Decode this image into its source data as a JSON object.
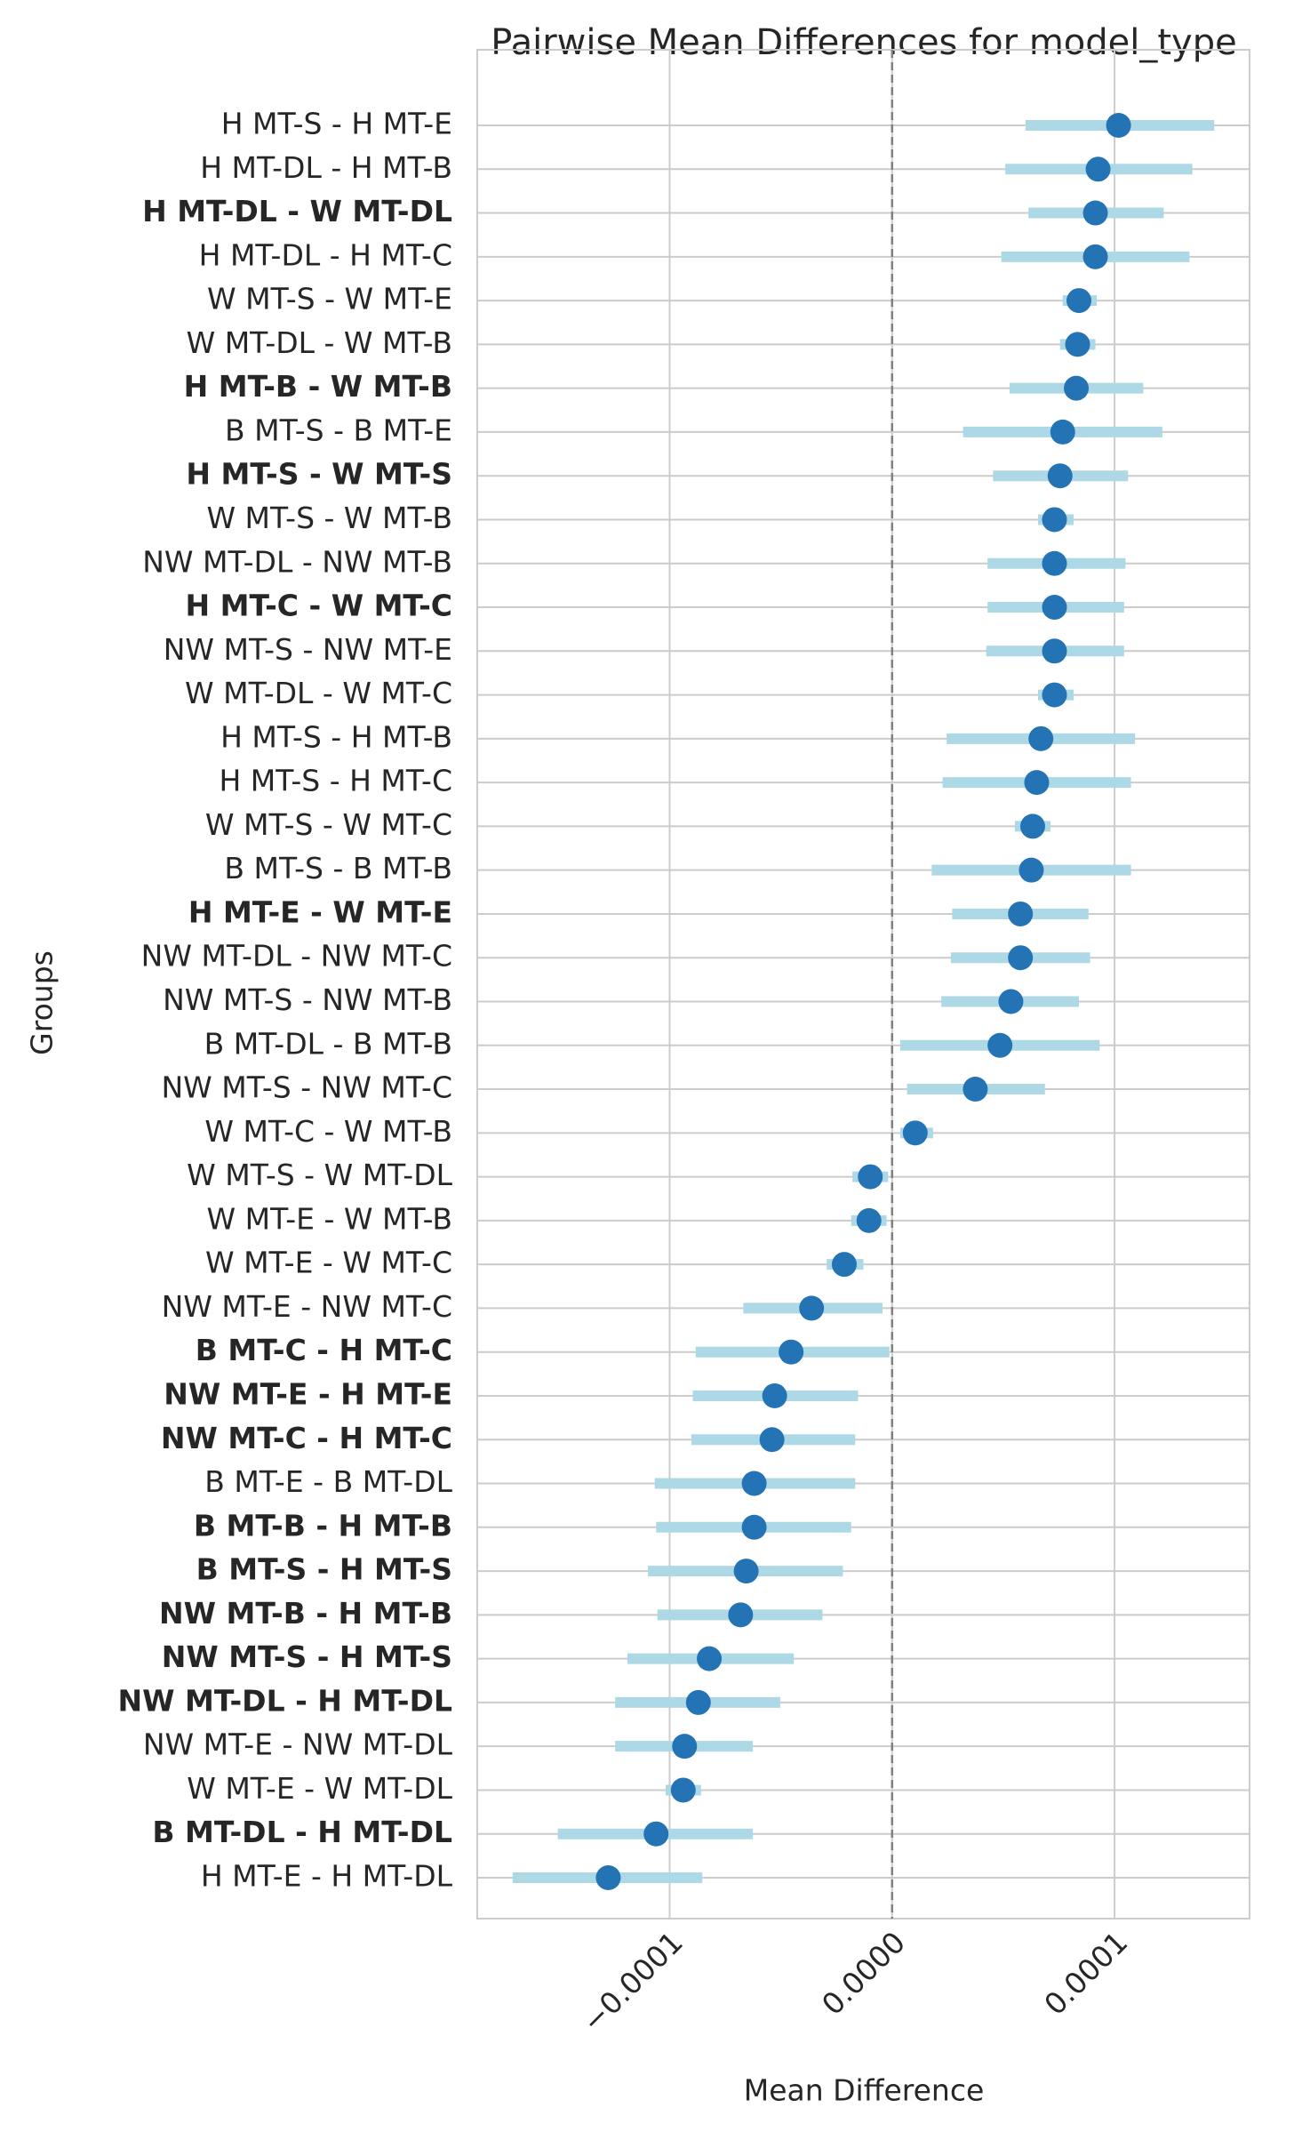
{
  "chart_data": {
    "type": "interval",
    "title": "Pairwise Mean Differences for model_type",
    "x_label": "Mean Difference",
    "y_label": "Groups",
    "categories": [
      "H MT-S - H MT-E",
      "H MT-DL - H MT-B",
      "H MT-DL - W MT-DL",
      "H MT-DL - H MT-C",
      "W MT-S - W MT-E",
      "W MT-DL - W MT-B",
      "H MT-B - W MT-B",
      "B MT-S - B MT-E",
      "H MT-S - W MT-S",
      "W MT-S - W MT-B",
      "NW MT-DL - NW MT-B",
      "H MT-C - W MT-C",
      "NW MT-S - NW MT-E",
      "W MT-DL - W MT-C",
      "H MT-S - H MT-B",
      "H MT-S - H MT-C",
      "W MT-S - W MT-C",
      "B MT-S - B MT-B",
      "H MT-E - W MT-E",
      "NW MT-DL - NW MT-C",
      "NW MT-S - NW MT-B",
      "B MT-DL - B MT-B",
      "NW MT-S - NW MT-C",
      "W MT-C - W MT-B",
      "W MT-S - W MT-DL",
      "W MT-E - W MT-B",
      "W MT-E - W MT-C",
      "NW MT-E - NW MT-C",
      "B MT-C - H MT-C",
      "NW MT-E - H MT-E",
      "NW MT-C - H MT-C",
      "B MT-E - B MT-DL",
      "B MT-B - H MT-B",
      "B MT-S - H MT-S",
      "NW MT-B - H MT-B",
      "NW MT-S - H MT-S",
      "NW MT-DL - H MT-DL",
      "NW MT-E - NW MT-DL",
      "W MT-E - W MT-DL",
      "B MT-DL - H MT-DL",
      "H MT-E - H MT-DL"
    ],
    "bold": [
      false,
      false,
      true,
      false,
      false,
      false,
      true,
      false,
      true,
      false,
      false,
      true,
      false,
      false,
      false,
      false,
      false,
      false,
      true,
      false,
      false,
      false,
      false,
      false,
      false,
      false,
      false,
      false,
      true,
      true,
      true,
      false,
      true,
      true,
      true,
      true,
      true,
      false,
      false,
      true,
      false
    ],
    "values": [
      0.0001018,
      9.26e-05,
      9.14e-05,
      9.14e-05,
      8.4e-05,
      8.34e-05,
      8.28e-05,
      7.67e-05,
      7.55e-05,
      7.3e-05,
      7.3e-05,
      7.3e-05,
      7.3e-05,
      7.3e-05,
      6.69e-05,
      6.5e-05,
      6.32e-05,
      6.26e-05,
      5.77e-05,
      5.77e-05,
      5.34e-05,
      4.85e-05,
      3.74e-05,
      1.04e-05,
      -9.8e-06,
      -1.04e-05,
      -2.15e-05,
      -3.62e-05,
      -4.54e-05,
      -5.28e-05,
      -5.4e-05,
      -6.2e-05,
      -6.2e-05,
      -6.56e-05,
      -6.81e-05,
      -8.22e-05,
      -8.71e-05,
      -9.33e-05,
      -9.39e-05,
      -0.0001061,
      -0.0001276
    ],
    "lower": [
      6e-05,
      5.09e-05,
      6.13e-05,
      4.91e-05,
      7.67e-05,
      7.55e-05,
      5.28e-05,
      3.19e-05,
      4.54e-05,
      6.56e-05,
      4.29e-05,
      4.29e-05,
      4.23e-05,
      6.56e-05,
      2.45e-05,
      2.27e-05,
      5.52e-05,
      1.78e-05,
      2.7e-05,
      2.64e-05,
      2.21e-05,
      3.7e-06,
      6.7e-06,
      3.7e-06,
      -1.78e-05,
      -1.84e-05,
      -2.94e-05,
      -6.69e-05,
      -8.83e-05,
      -8.96e-05,
      -9.02e-05,
      -0.0001067,
      -0.0001061,
      -0.0001098,
      -0.0001055,
      -0.000119,
      -0.0001245,
      -0.0001245,
      -0.0001018,
      -0.0001503,
      -0.0001706
    ],
    "upper": [
      0.0001448,
      0.000135,
      0.0001221,
      0.0001337,
      9.2e-05,
      9.14e-05,
      0.0001129,
      0.0001215,
      0.0001061,
      8.16e-05,
      0.0001049,
      0.0001043,
      0.0001043,
      8.16e-05,
      0.0001092,
      0.0001074,
      7.12e-05,
      0.0001074,
      8.83e-05,
      8.9e-05,
      8.4e-05,
      9.33e-05,
      6.87e-05,
      1.84e-05,
      -1.8e-06,
      -2.5e-06,
      -1.29e-05,
      -4.3e-06,
      -1.2e-06,
      -1.53e-05,
      -1.66e-05,
      -1.66e-05,
      -1.84e-05,
      -2.21e-05,
      -3.13e-05,
      -4.42e-05,
      -5.03e-05,
      -6.26e-05,
      -8.59e-05,
      -6.26e-05,
      -8.53e-05
    ],
    "color": "#2474b5",
    "interval_color": "#add8e6",
    "reference_line": 0,
    "xlim": [
      -0.0001865,
      0.0001607
    ],
    "xticks": [
      {
        "value": -0.0001,
        "label": "−0.0001"
      },
      {
        "value": 0,
        "label": "0.0000"
      },
      0.0001
    ],
    "grid": true
  }
}
